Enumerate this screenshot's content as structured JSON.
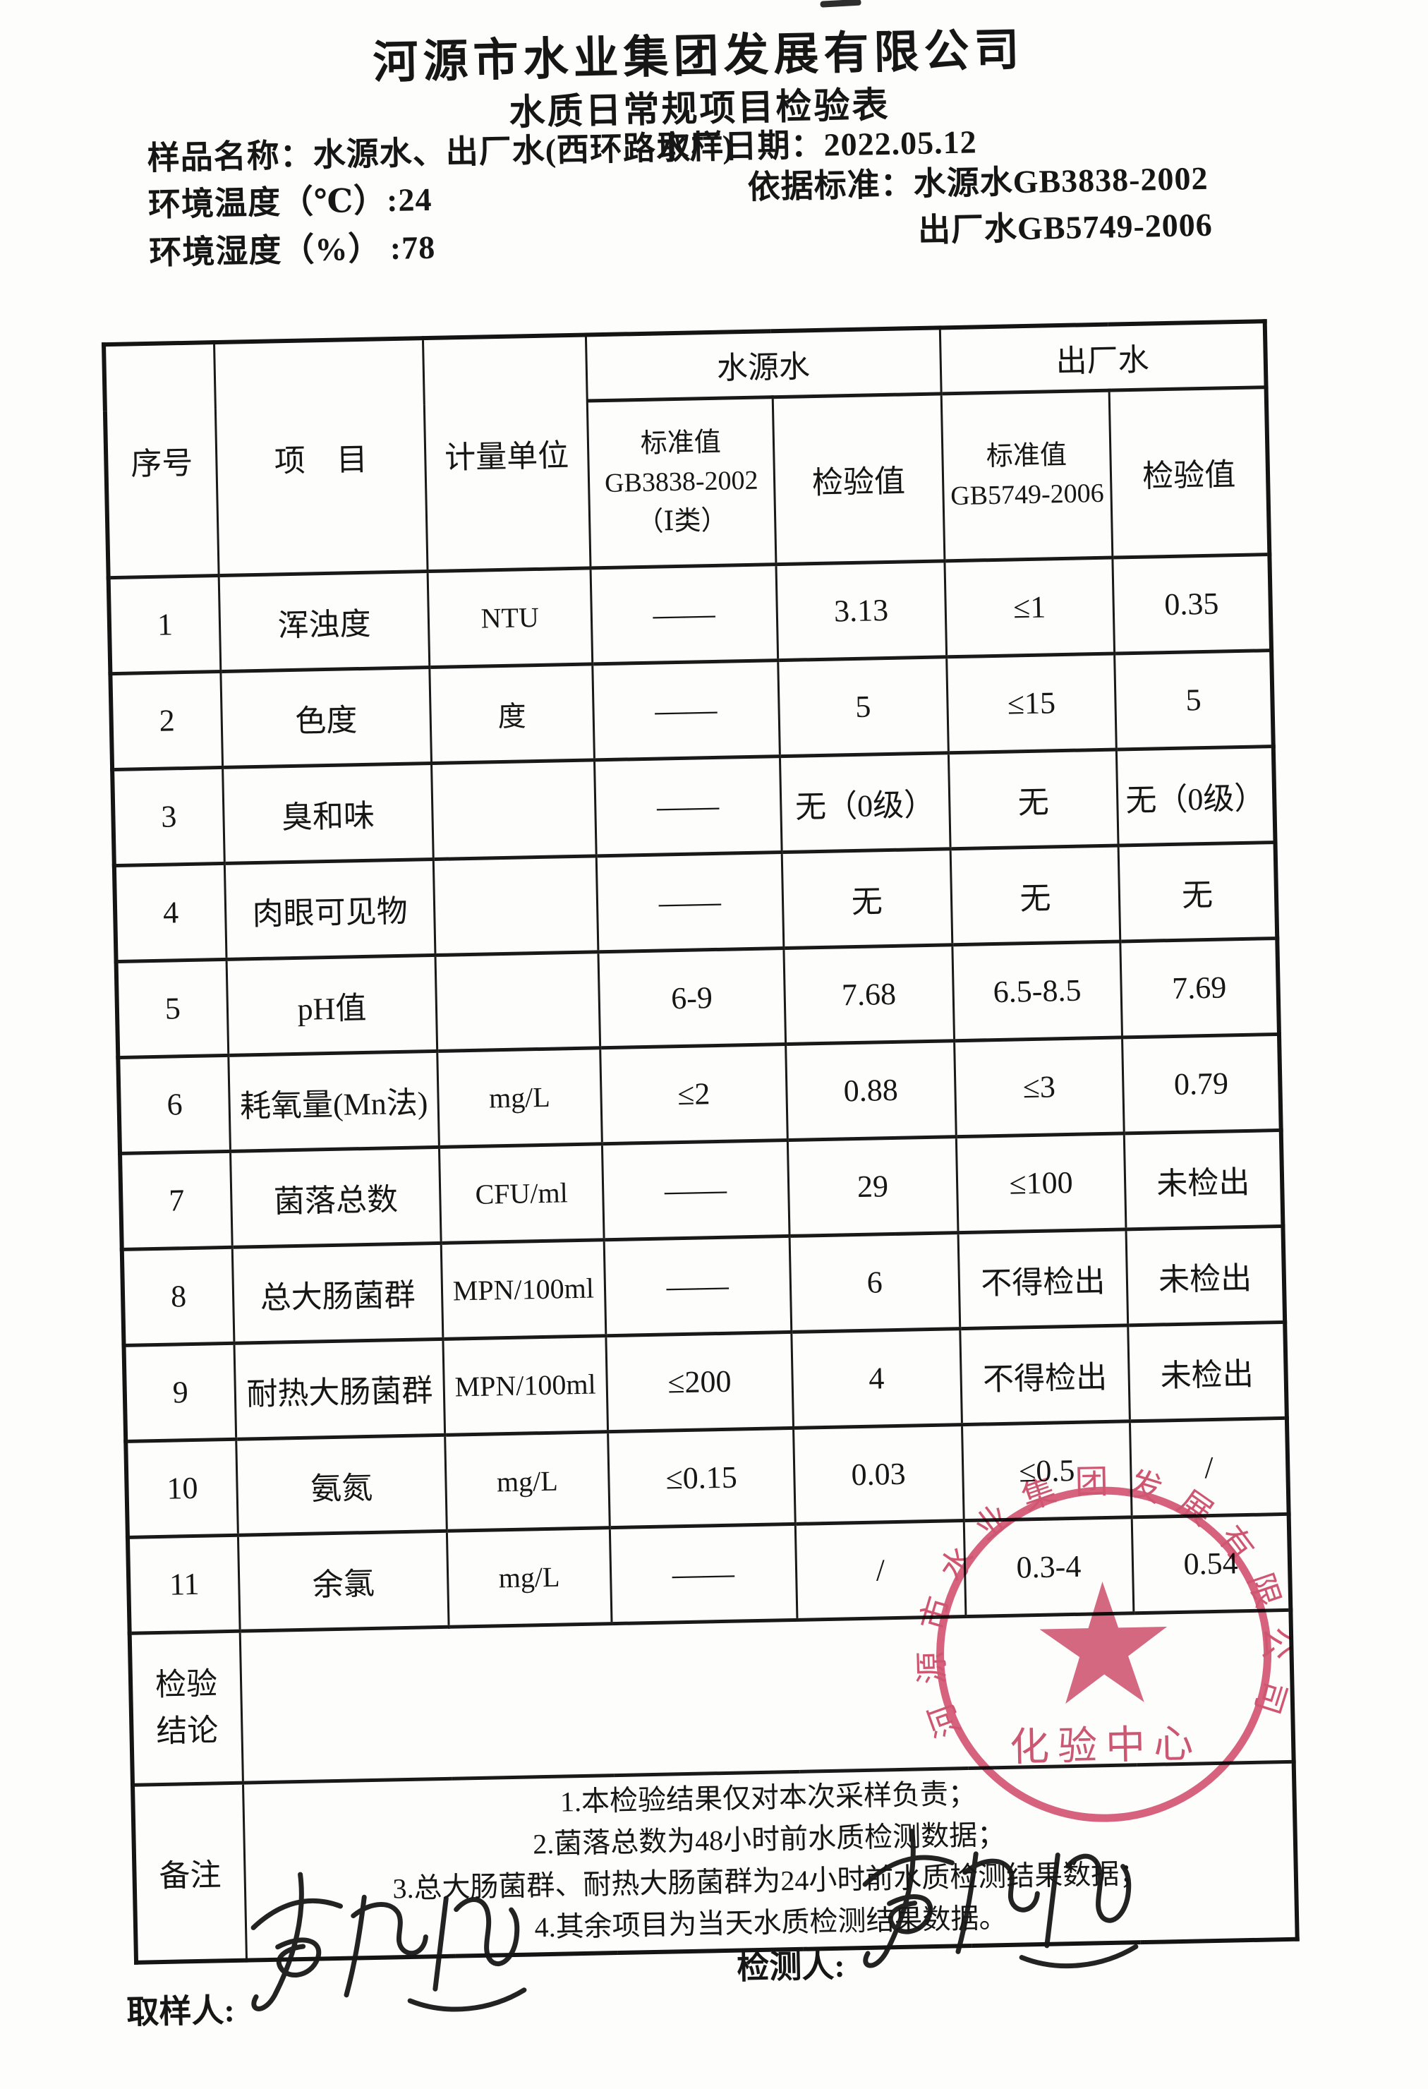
{
  "page": {
    "company": "河源市水业集团发展有限公司",
    "form_title": "水质日常规项目检验表",
    "sample_line": "样品名称：水源水、出厂水(西环路水厂)",
    "date_line": "取样日期：2022.05.12",
    "env_temp": "环境温度（℃）:24",
    "env_humidity": "环境湿度（%） :78",
    "standard_source": "依据标准：水源水GB3838-2002",
    "standard_outlet": "出厂水GB5749-2006"
  },
  "table": {
    "headers": {
      "no": "序号",
      "item": "项　目",
      "unit": "计量单位",
      "source_group": "水源水",
      "outlet_group": "出厂水",
      "source_std": "标准值\nGB3838-2002\n（Ⅰ类）",
      "source_val": "检验值",
      "outlet_std": "标准值\nGB5749-2006",
      "outlet_val": "检验值"
    },
    "rows": [
      {
        "no": "1",
        "item": "浑浊度",
        "unit": "NTU",
        "src_std": "——",
        "src_val": "3.13",
        "out_std": "≤1",
        "out_val": "0.35"
      },
      {
        "no": "2",
        "item": "色度",
        "unit": "度",
        "src_std": "——",
        "src_val": "5",
        "out_std": "≤15",
        "out_val": "5"
      },
      {
        "no": "3",
        "item": "臭和味",
        "unit": "",
        "src_std": "——",
        "src_val": "无（0级）",
        "out_std": "无",
        "out_val": "无（0级）"
      },
      {
        "no": "4",
        "item": "肉眼可见物",
        "unit": "",
        "src_std": "——",
        "src_val": "无",
        "out_std": "无",
        "out_val": "无"
      },
      {
        "no": "5",
        "item": "pH值",
        "unit": "",
        "src_std": "6-9",
        "src_val": "7.68",
        "out_std": "6.5-8.5",
        "out_val": "7.69"
      },
      {
        "no": "6",
        "item": "耗氧量(Mn法)",
        "unit": "mg/L",
        "src_std": "≤2",
        "src_val": "0.88",
        "out_std": "≤3",
        "out_val": "0.79"
      },
      {
        "no": "7",
        "item": "菌落总数",
        "unit": "CFU/ml",
        "src_std": "——",
        "src_val": "29",
        "out_std": "≤100",
        "out_val": "未检出"
      },
      {
        "no": "8",
        "item": "总大肠菌群",
        "unit": "MPN/100ml",
        "src_std": "——",
        "src_val": "6",
        "out_std": "不得检出",
        "out_val": "未检出"
      },
      {
        "no": "9",
        "item": "耐热大肠菌群",
        "unit": "MPN/100ml",
        "src_std": "≤200",
        "src_val": "4",
        "out_std": "不得检出",
        "out_val": "未检出"
      },
      {
        "no": "10",
        "item": "氨氮",
        "unit": "mg/L",
        "src_std": "≤0.15",
        "src_val": "0.03",
        "out_std": "≤0.5",
        "out_val": "/"
      },
      {
        "no": "11",
        "item": "余氯",
        "unit": "mg/L",
        "src_std": "——",
        "src_val": "/",
        "out_std": "0.3-4",
        "out_val": "0.54"
      }
    ],
    "conclusion_label": "检验\n结论",
    "conclusion_value": "",
    "remark_label": "备注",
    "remarks": [
      "1.本检验结果仅对本次采样负责；",
      "2.菌落总数为48小时前水质检测数据；",
      "3.总大肠菌群、耐热大肠菌群为24小时前水质检测结果数据；",
      "4.其余项目为当天水质检测结果数据。"
    ]
  },
  "stamp": {
    "ring_text": "河源市水业集团发展有限公司",
    "center_text": "化验中心",
    "color": "#cf4766"
  },
  "signatures": {
    "sampler_label": "取样人:",
    "tester_label": "检测人:"
  }
}
